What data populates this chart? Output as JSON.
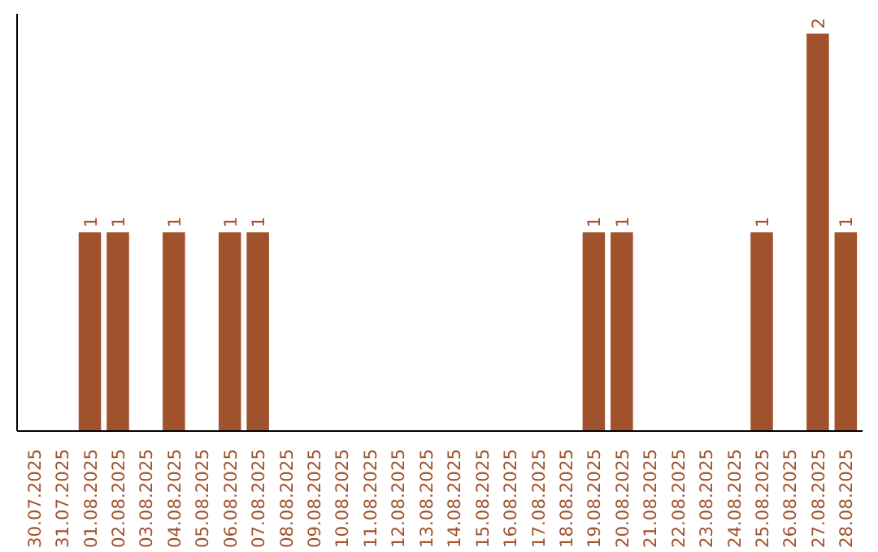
{
  "chart_data": {
    "type": "bar",
    "categories": [
      "30.07.2025",
      "31.07.2025",
      "01.08.2025",
      "02.08.2025",
      "03.08.2025",
      "04.08.2025",
      "05.08.2025",
      "06.08.2025",
      "07.08.2025",
      "08.08.2025",
      "09.08.2025",
      "10.08.2025",
      "11.08.2025",
      "12.08.2025",
      "13.08.2025",
      "14.08.2025",
      "15.08.2025",
      "16.08.2025",
      "17.08.2025",
      "18.08.2025",
      "19.08.2025",
      "20.08.2025",
      "21.08.2025",
      "22.08.2025",
      "23.08.2025",
      "24.08.2025",
      "25.08.2025",
      "26.08.2025",
      "27.08.2025",
      "28.08.2025"
    ],
    "values": [
      0,
      0,
      1,
      1,
      0,
      1,
      0,
      1,
      1,
      0,
      0,
      0,
      0,
      0,
      0,
      0,
      0,
      0,
      0,
      0,
      1,
      1,
      0,
      0,
      0,
      0,
      1,
      0,
      2,
      1
    ],
    "color": "#a0522d",
    "ylim": [
      0,
      2.1
    ],
    "value_labels": [
      null,
      null,
      "1",
      "1",
      null,
      "1",
      null,
      "1",
      "1",
      null,
      null,
      null,
      null,
      null,
      null,
      null,
      null,
      null,
      null,
      null,
      "1",
      "1",
      null,
      null,
      null,
      null,
      "1",
      null,
      "2",
      "1"
    ],
    "grid": false,
    "tick_labels": "x"
  }
}
